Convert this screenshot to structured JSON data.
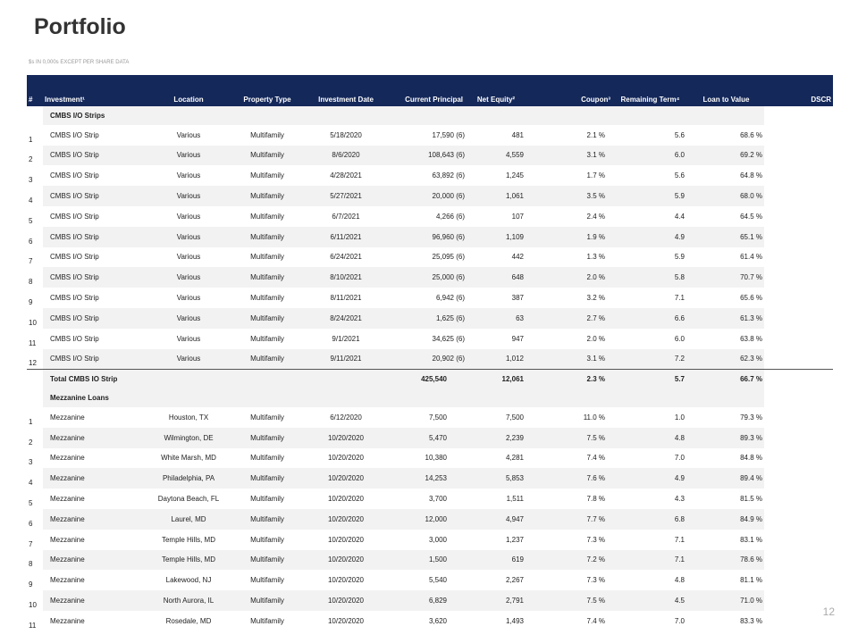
{
  "header": {
    "title": "Portfolio",
    "subtitle": "$s IN 0,000s EXCEPT PER SHARE DATA"
  },
  "table": {
    "columns": [
      "#",
      "Investment¹",
      "Location",
      "Property Type",
      "Investment Date",
      "Current Principal",
      "Net Equity²",
      "Coupon³",
      "Remaining Term⁴",
      "Loan to Value",
      "DSCR"
    ],
    "sections": [
      {
        "title": "CMBS I/O Strips",
        "rows": [
          [
            "1",
            "CMBS I/O Strip",
            "Various",
            "Multifamily",
            "5/18/2020",
            "17,590 (6)",
            "481",
            "2.1 %",
            "5.6",
            "68.6 %"
          ],
          [
            "2",
            "CMBS I/O Strip",
            "Various",
            "Multifamily",
            "8/6/2020",
            "108,643 (6)",
            "4,559",
            "3.1 %",
            "6.0",
            "69.2 %"
          ],
          [
            "3",
            "CMBS I/O Strip",
            "Various",
            "Multifamily",
            "4/28/2021",
            "63,892 (6)",
            "1,245",
            "1.7 %",
            "5.6",
            "64.8 %"
          ],
          [
            "4",
            "CMBS I/O Strip",
            "Various",
            "Multifamily",
            "5/27/2021",
            "20,000 (6)",
            "1,061",
            "3.5 %",
            "5.9",
            "68.0 %"
          ],
          [
            "5",
            "CMBS I/O Strip",
            "Various",
            "Multifamily",
            "6/7/2021",
            "4,266 (6)",
            "107",
            "2.4 %",
            "4.4",
            "64.5 %"
          ],
          [
            "6",
            "CMBS I/O Strip",
            "Various",
            "Multifamily",
            "6/11/2021",
            "96,960 (6)",
            "1,109",
            "1.9 %",
            "4.9",
            "65.1 %"
          ],
          [
            "7",
            "CMBS I/O Strip",
            "Various",
            "Multifamily",
            "6/24/2021",
            "25,095 (6)",
            "442",
            "1.3 %",
            "5.9",
            "61.4 %"
          ],
          [
            "8",
            "CMBS I/O Strip",
            "Various",
            "Multifamily",
            "8/10/2021",
            "25,000 (6)",
            "648",
            "2.0 %",
            "5.8",
            "70.7 %"
          ],
          [
            "9",
            "CMBS I/O Strip",
            "Various",
            "Multifamily",
            "8/11/2021",
            "6,942 (6)",
            "387",
            "3.2 %",
            "7.1",
            "65.6 %"
          ],
          [
            "10",
            "CMBS I/O Strip",
            "Various",
            "Multifamily",
            "8/24/2021",
            "1,625 (6)",
            "63",
            "2.7 %",
            "6.6",
            "61.3 %"
          ],
          [
            "11",
            "CMBS I/O Strip",
            "Various",
            "Multifamily",
            "9/1/2021",
            "34,625 (6)",
            "947",
            "2.0 %",
            "6.0",
            "63.8 %"
          ],
          [
            "12",
            "CMBS I/O Strip",
            "Various",
            "Multifamily",
            "9/11/2021",
            "20,902 (6)",
            "1,012",
            "3.1 %",
            "7.2",
            "62.3 %"
          ]
        ],
        "total": [
          "Total CMBS IO Strip",
          "425,540",
          "12,061",
          "2.3 %",
          "5.7",
          "66.7 %"
        ]
      },
      {
        "title": "Mezzanine Loans",
        "rows": [
          [
            "1",
            "Mezzanine",
            "Houston, TX",
            "Multifamily",
            "6/12/2020",
            "7,500",
            "7,500",
            "11.0 %",
            "1.0",
            "79.3 %"
          ],
          [
            "2",
            "Mezzanine",
            "Wilmington, DE",
            "Multifamily",
            "10/20/2020",
            "5,470",
            "2,239",
            "7.5 %",
            "4.8",
            "89.3 %"
          ],
          [
            "3",
            "Mezzanine",
            "White Marsh, MD",
            "Multifamily",
            "10/20/2020",
            "10,380",
            "4,281",
            "7.4 %",
            "7.0",
            "84.8 %"
          ],
          [
            "4",
            "Mezzanine",
            "Philadelphia, PA",
            "Multifamily",
            "10/20/2020",
            "14,253",
            "5,853",
            "7.6 %",
            "4.9",
            "89.4 %"
          ],
          [
            "5",
            "Mezzanine",
            "Daytona Beach, FL",
            "Multifamily",
            "10/20/2020",
            "3,700",
            "1,511",
            "7.8 %",
            "4.3",
            "81.5 %"
          ],
          [
            "6",
            "Mezzanine",
            "Laurel, MD",
            "Multifamily",
            "10/20/2020",
            "12,000",
            "4,947",
            "7.7 %",
            "6.8",
            "84.9 %"
          ],
          [
            "7",
            "Mezzanine",
            "Temple Hills, MD",
            "Multifamily",
            "10/20/2020",
            "3,000",
            "1,237",
            "7.3 %",
            "7.1",
            "83.1 %"
          ],
          [
            "8",
            "Mezzanine",
            "Temple Hills, MD",
            "Multifamily",
            "10/20/2020",
            "1,500",
            "619",
            "7.2 %",
            "7.1",
            "78.6 %"
          ],
          [
            "9",
            "Mezzanine",
            "Lakewood, NJ",
            "Multifamily",
            "10/20/2020",
            "5,540",
            "2,267",
            "7.3 %",
            "4.8",
            "81.1 %"
          ],
          [
            "10",
            "Mezzanine",
            "North Aurora, IL",
            "Multifamily",
            "10/20/2020",
            "6,829",
            "2,791",
            "7.5 %",
            "4.5",
            "71.0 %"
          ],
          [
            "11",
            "Mezzanine",
            "Rosedale, MD",
            "Multifamily",
            "10/20/2020",
            "3,620",
            "1,493",
            "7.4 %",
            "7.0",
            "83.3 %"
          ]
        ]
      }
    ]
  },
  "footer": {
    "page": "12"
  }
}
